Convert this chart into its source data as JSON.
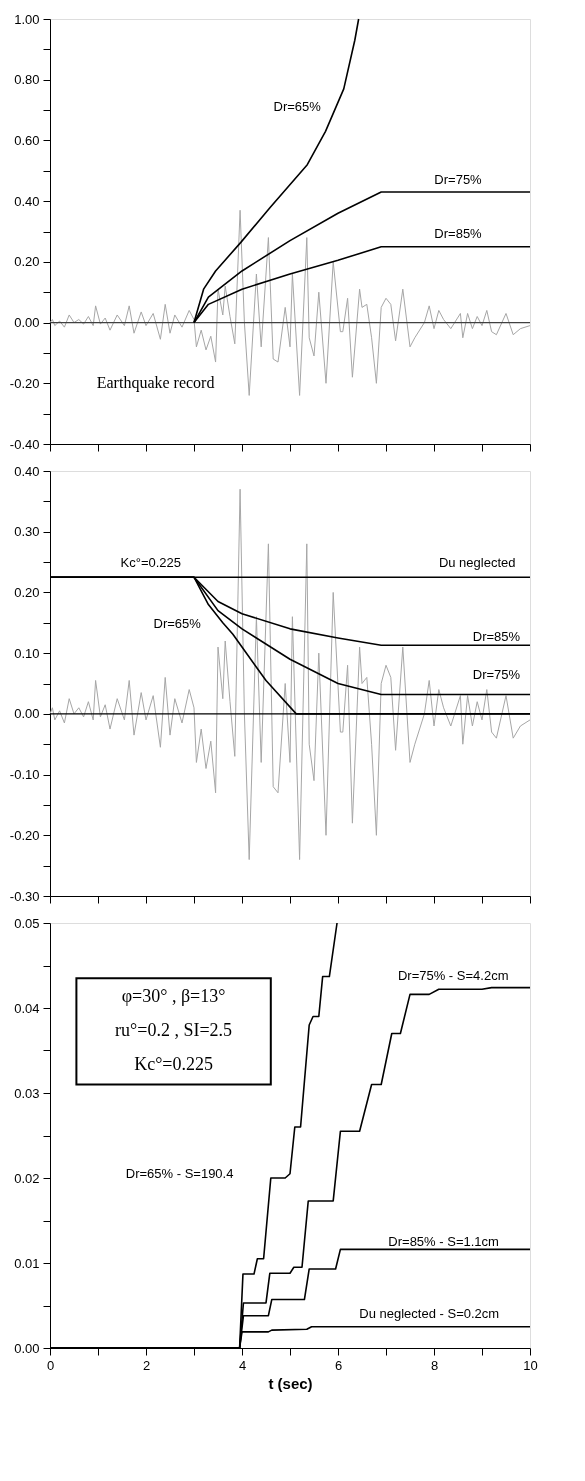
{
  "chart_data": [
    {
      "type": "line",
      "xlim": [
        0,
        10
      ],
      "ylim": [
        -0.4,
        1.0
      ],
      "tick_labels": "y",
      "grid": false,
      "marker": "none",
      "line_style": "solid",
      "xticks": [
        0,
        {
          "value": 1,
          "label": null
        },
        2,
        {
          "value": 3,
          "label": null
        },
        4,
        {
          "value": 5,
          "label": null
        },
        6,
        {
          "value": 7,
          "label": null
        },
        8,
        {
          "value": 9,
          "label": null
        },
        10
      ],
      "yticks": [
        {
          "value": -0.4,
          "label": "-0.40"
        },
        {
          "value": -0.3,
          "label": null
        },
        {
          "value": -0.2,
          "label": "-0.20"
        },
        {
          "value": -0.1,
          "label": null
        },
        {
          "value": 0,
          "label": "0.00"
        },
        {
          "value": 0.1,
          "label": null
        },
        {
          "value": 0.2,
          "label": "0.20"
        },
        {
          "value": 0.3,
          "label": null
        },
        {
          "value": 0.4,
          "label": "0.40"
        },
        {
          "value": 0.5,
          "label": null
        },
        {
          "value": 0.6,
          "label": "0.60"
        },
        {
          "value": 0.7,
          "label": null
        },
        {
          "value": 0.8,
          "label": "0.80"
        },
        {
          "value": 0.9,
          "label": null
        },
        {
          "value": 1.0,
          "label": "1.00"
        }
      ],
      "ref_lines": [
        {
          "axis": "y",
          "value": 0,
          "color": "#404040"
        }
      ],
      "series": [
        {
          "color": "#a6a6a6",
          "x": [
            0,
            0.05,
            0.1,
            0.2,
            0.3,
            0.4,
            0.5,
            0.6,
            0.7,
            0.8,
            0.9,
            0.95,
            1.05,
            1.15,
            1.25,
            1.4,
            1.55,
            1.65,
            1.75,
            1.9,
            2.0,
            2.15,
            2.3,
            2.4,
            2.5,
            2.6,
            2.75,
            2.9,
            3.0,
            3.05,
            3.15,
            3.25,
            3.35,
            3.45,
            3.5,
            3.6,
            3.65,
            3.75,
            3.85,
            3.96,
            4.05,
            4.15,
            4.3,
            4.4,
            4.55,
            4.65,
            4.75,
            4.9,
            5.0,
            5.05,
            5.2,
            5.35,
            5.4,
            5.5,
            5.6,
            5.75,
            5.9,
            6.05,
            6.1,
            6.2,
            6.3,
            6.45,
            6.5,
            6.6,
            6.7,
            6.8,
            6.9,
            7.0,
            7.1,
            7.2,
            7.35,
            7.5,
            7.6,
            7.8,
            7.9,
            8.0,
            8.1,
            8.2,
            8.35,
            8.55,
            8.6,
            8.7,
            8.8,
            8.9,
            9.0,
            9.1,
            9.2,
            9.3,
            9.5,
            9.65,
            9.8,
            10.0
          ],
          "values": [
            0.0,
            0.01,
            -0.01,
            0.005,
            -0.015,
            0.025,
            0.0,
            0.01,
            -0.005,
            0.02,
            -0.01,
            0.055,
            -0.005,
            0.015,
            -0.025,
            0.025,
            -0.01,
            0.055,
            -0.035,
            0.035,
            -0.01,
            0.03,
            -0.055,
            0.06,
            -0.035,
            0.025,
            -0.015,
            0.04,
            0.01,
            -0.08,
            -0.025,
            -0.09,
            -0.045,
            -0.13,
            0.11,
            0.025,
            0.12,
            0.02,
            -0.07,
            0.37,
            0.0,
            -0.24,
            0.16,
            -0.08,
            0.28,
            -0.12,
            -0.13,
            0.05,
            -0.08,
            0.16,
            -0.24,
            0.28,
            -0.05,
            -0.11,
            0.1,
            -0.2,
            0.2,
            -0.03,
            -0.03,
            0.08,
            -0.18,
            0.11,
            0.05,
            0.06,
            -0.05,
            -0.2,
            0.05,
            0.08,
            0.06,
            -0.06,
            0.11,
            -0.08,
            -0.05,
            0.0,
            0.055,
            -0.02,
            0.04,
            0.01,
            -0.02,
            0.03,
            -0.05,
            0.03,
            -0.02,
            0.02,
            -0.01,
            0.04,
            -0.03,
            -0.04,
            0.03,
            -0.04,
            -0.02,
            -0.01
          ]
        },
        {
          "color": "#000000",
          "x": [
            3,
            3.2,
            3.45,
            3.98,
            4.59,
            5.36,
            5.74,
            6.12,
            6.35,
            6.43
          ],
          "values": [
            0,
            0.11,
            0.17,
            0.265,
            0.38,
            0.52,
            0.63,
            0.77,
            0.93,
            1.0
          ]
        },
        {
          "color": "#000000",
          "x": [
            3,
            3.3,
            4.0,
            5.0,
            6.0,
            6.9,
            10
          ],
          "values": [
            0,
            0.084,
            0.17,
            0.27,
            0.36,
            0.43,
            0.43
          ]
        },
        {
          "color": "#000000",
          "x": [
            3,
            3.3,
            4.0,
            5.0,
            6.0,
            6.9,
            10
          ],
          "values": [
            0,
            0.06,
            0.11,
            0.16,
            0.205,
            0.25,
            0.25
          ]
        }
      ],
      "annotations": [
        "Dr=65%",
        "Dr=75%",
        "Dr=85%",
        "Earthquake record"
      ]
    },
    {
      "type": "line",
      "xlim": [
        0,
        10
      ],
      "ylim": [
        -0.3,
        0.4
      ],
      "tick_labels": "y",
      "grid": false,
      "marker": "none",
      "line_style": "solid",
      "xticks": [
        0,
        {
          "value": 1,
          "label": null
        },
        2,
        {
          "value": 3,
          "label": null
        },
        4,
        {
          "value": 5,
          "label": null
        },
        6,
        {
          "value": 7,
          "label": null
        },
        8,
        {
          "value": 9,
          "label": null
        },
        10
      ],
      "yticks": [
        {
          "value": -0.3,
          "label": "-0.30"
        },
        {
          "value": -0.25,
          "label": null
        },
        {
          "value": -0.2,
          "label": "-0.20"
        },
        {
          "value": -0.15,
          "label": null
        },
        {
          "value": -0.1,
          "label": "-0.10"
        },
        {
          "value": -0.05,
          "label": null
        },
        {
          "value": 0,
          "label": "0.00"
        },
        {
          "value": 0.05,
          "label": null
        },
        {
          "value": 0.1,
          "label": "0.10"
        },
        {
          "value": 0.15,
          "label": null
        },
        {
          "value": 0.2,
          "label": "0.20"
        },
        {
          "value": 0.25,
          "label": null
        },
        {
          "value": 0.3,
          "label": "0.30"
        },
        {
          "value": 0.35,
          "label": null
        },
        {
          "value": 0.4,
          "label": "0.40"
        }
      ],
      "ref_lines": [
        {
          "axis": "y",
          "value": 0,
          "color": "#000000"
        }
      ],
      "series": [
        {
          "color": "#a6a6a6",
          "x": [
            0,
            0.05,
            0.1,
            0.2,
            0.3,
            0.4,
            0.5,
            0.6,
            0.7,
            0.8,
            0.9,
            0.95,
            1.05,
            1.15,
            1.25,
            1.4,
            1.55,
            1.65,
            1.75,
            1.9,
            2.0,
            2.15,
            2.3,
            2.4,
            2.5,
            2.6,
            2.75,
            2.9,
            3.0,
            3.05,
            3.15,
            3.25,
            3.35,
            3.45,
            3.5,
            3.6,
            3.65,
            3.75,
            3.85,
            3.96,
            4.05,
            4.15,
            4.3,
            4.4,
            4.55,
            4.65,
            4.75,
            4.9,
            5.0,
            5.05,
            5.2,
            5.35,
            5.4,
            5.5,
            5.6,
            5.75,
            5.9,
            6.05,
            6.1,
            6.2,
            6.3,
            6.45,
            6.5,
            6.6,
            6.7,
            6.8,
            6.9,
            7.0,
            7.1,
            7.2,
            7.35,
            7.5,
            7.6,
            7.8,
            7.9,
            8.0,
            8.1,
            8.2,
            8.35,
            8.55,
            8.6,
            8.7,
            8.8,
            8.9,
            9.0,
            9.1,
            9.2,
            9.3,
            9.5,
            9.65,
            9.8,
            10.0
          ],
          "values": [
            0.0,
            0.01,
            -0.01,
            0.005,
            -0.015,
            0.025,
            0.0,
            0.01,
            -0.005,
            0.02,
            -0.01,
            0.055,
            -0.005,
            0.015,
            -0.025,
            0.025,
            -0.01,
            0.055,
            -0.035,
            0.035,
            -0.01,
            0.03,
            -0.055,
            0.06,
            -0.035,
            0.025,
            -0.015,
            0.04,
            0.01,
            -0.08,
            -0.025,
            -0.09,
            -0.045,
            -0.13,
            0.11,
            0.025,
            0.12,
            0.02,
            -0.07,
            0.37,
            0.0,
            -0.24,
            0.16,
            -0.08,
            0.28,
            -0.12,
            -0.13,
            0.05,
            -0.08,
            0.16,
            -0.24,
            0.28,
            -0.05,
            -0.11,
            0.1,
            -0.2,
            0.2,
            -0.03,
            -0.03,
            0.08,
            -0.18,
            0.11,
            0.05,
            0.06,
            -0.05,
            -0.2,
            0.05,
            0.08,
            0.06,
            -0.06,
            0.11,
            -0.08,
            -0.05,
            0.0,
            0.055,
            -0.02,
            0.04,
            0.01,
            -0.02,
            0.03,
            -0.05,
            0.03,
            -0.02,
            0.02,
            -0.01,
            0.04,
            -0.03,
            -0.04,
            0.03,
            -0.04,
            -0.02,
            -0.01
          ]
        },
        {
          "color": "#000000",
          "x": [
            0,
            10
          ],
          "values": [
            0.225,
            0.225
          ]
        },
        {
          "color": "#000000",
          "x": [
            0,
            3,
            3.3,
            3.6,
            3.81,
            4.0,
            4.5,
            5.13,
            10
          ],
          "values": [
            0.225,
            0.225,
            0.18,
            0.15,
            0.131,
            0.11,
            0.055,
            0,
            0
          ]
        },
        {
          "color": "#000000",
          "x": [
            0,
            3,
            3.5,
            4.0,
            5.0,
            6.0,
            6.9,
            10
          ],
          "values": [
            0.225,
            0.225,
            0.17,
            0.14,
            0.09,
            0.05,
            0.032,
            0.032
          ]
        },
        {
          "color": "#000000",
          "x": [
            0,
            3,
            3.5,
            4.0,
            5.0,
            6.0,
            6.9,
            10
          ],
          "values": [
            0.225,
            0.225,
            0.185,
            0.165,
            0.14,
            0.125,
            0.113,
            0.113
          ]
        }
      ],
      "annotations": [
        "Kc°=0.225",
        "Du neglected",
        "Dr=65%",
        "Dr=85%",
        "Dr=75%"
      ]
    },
    {
      "type": "line",
      "xlim": [
        0,
        10
      ],
      "ylim": [
        0,
        0.05
      ],
      "xlabel": "t (sec)",
      "grid": false,
      "marker": "none",
      "line_style": "solid",
      "xticks": [
        0,
        {
          "value": 1,
          "label": null
        },
        2,
        {
          "value": 3,
          "label": null
        },
        4,
        {
          "value": 5,
          "label": null
        },
        6,
        {
          "value": 7,
          "label": null
        },
        8,
        {
          "value": 9,
          "label": null
        },
        10
      ],
      "yticks": [
        {
          "value": 0,
          "label": "0.00"
        },
        {
          "value": 0.005,
          "label": null
        },
        {
          "value": 0.01,
          "label": "0.01"
        },
        {
          "value": 0.015,
          "label": null
        },
        {
          "value": 0.02,
          "label": "0.02"
        },
        {
          "value": 0.025,
          "label": null
        },
        {
          "value": 0.03,
          "label": "0.03"
        },
        {
          "value": 0.035,
          "label": null
        },
        {
          "value": 0.04,
          "label": "0.04"
        },
        {
          "value": 0.045,
          "label": null
        },
        {
          "value": 0.05,
          "label": "0.05"
        }
      ],
      "series": [
        {
          "color": "#000000",
          "x": [
            0,
            3.95,
            4.02,
            4.25,
            4.32,
            4.45,
            4.6,
            4.9,
            5.0,
            5.1,
            5.22,
            5.4,
            5.48,
            5.6,
            5.68,
            5.82,
            5.98
          ],
          "values": [
            0,
            0,
            0.0087,
            0.0087,
            0.0105,
            0.0105,
            0.02,
            0.02,
            0.0205,
            0.026,
            0.026,
            0.038,
            0.039,
            0.039,
            0.0437,
            0.0437,
            0.05
          ]
        },
        {
          "color": "#000000",
          "x": [
            0,
            3.95,
            4.03,
            4.5,
            4.58,
            5.0,
            5.08,
            5.25,
            5.38,
            5.9,
            6.05,
            6.45,
            6.7,
            6.9,
            7.12,
            7.3,
            7.5,
            7.9,
            8.1,
            9.0,
            9.2,
            10
          ],
          "values": [
            0,
            0,
            0.0053,
            0.0053,
            0.0088,
            0.0088,
            0.0095,
            0.0095,
            0.0173,
            0.0173,
            0.0255,
            0.0255,
            0.031,
            0.031,
            0.037,
            0.037,
            0.0416,
            0.0416,
            0.0422,
            0.0422,
            0.0424,
            0.0424
          ]
        },
        {
          "color": "#000000",
          "x": [
            0,
            3.95,
            4.03,
            4.55,
            4.62,
            5.3,
            5.4,
            5.95,
            6.05,
            10
          ],
          "values": [
            0,
            0,
            0.0038,
            0.0038,
            0.0057,
            0.0057,
            0.0093,
            0.0093,
            0.0116,
            0.0116
          ]
        },
        {
          "color": "#000000",
          "x": [
            0,
            3.95,
            4.0,
            4.55,
            4.62,
            5.35,
            5.45,
            10
          ],
          "values": [
            0,
            0,
            0.0019,
            0.0019,
            0.0021,
            0.0022,
            0.0025,
            0.0025
          ]
        }
      ],
      "annotations": [
        "φ=30° , β=13°",
        "ru°=0.2 , SI=2.5",
        "Kc°=0.225",
        "Dr=75% - S=4.2cm",
        "Dr=65% - S=190.4",
        "Dr=85% - S=1.1cm",
        "Du neglected - S=0.2cm"
      ]
    }
  ]
}
